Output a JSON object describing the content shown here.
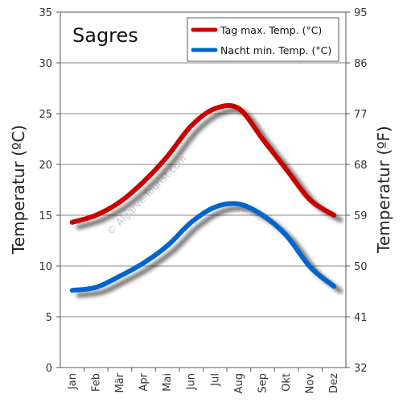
{
  "chart_data": {
    "type": "line",
    "title": "Sagres",
    "categories": [
      "Jan",
      "Feb",
      "Mär",
      "Apr",
      "Mai",
      "Jun",
      "Jul",
      "Aug",
      "Sep",
      "Okt",
      "Nov",
      "Dez"
    ],
    "series": [
      {
        "name": "Tag max. Temp. (°C)",
        "color": "#cc0000",
        "values": [
          14.3,
          15.0,
          16.3,
          18.3,
          20.8,
          23.8,
          25.5,
          25.5,
          22.5,
          19.5,
          16.5,
          15.0
        ]
      },
      {
        "name": "Nacht min. Temp. (°C)",
        "color": "#0066cc",
        "values": [
          7.6,
          7.9,
          9.0,
          10.3,
          12.0,
          14.3,
          15.8,
          16.1,
          15.0,
          13.0,
          9.9,
          8.0
        ]
      }
    ],
    "ylabel": "Temperatur (ºC)",
    "ylabel_right": "Temperatur (ºF)",
    "ylim": [
      0,
      35
    ],
    "yticks": [
      "0",
      "5",
      "10",
      "15",
      "20",
      "25",
      "30",
      "35"
    ],
    "yticks_right": [
      "32",
      "41",
      "50",
      "59",
      "68",
      "77",
      "86",
      "95"
    ],
    "grid": true,
    "legend_position": "top-right",
    "watermark": "© Algarve-Tourist.com"
  }
}
